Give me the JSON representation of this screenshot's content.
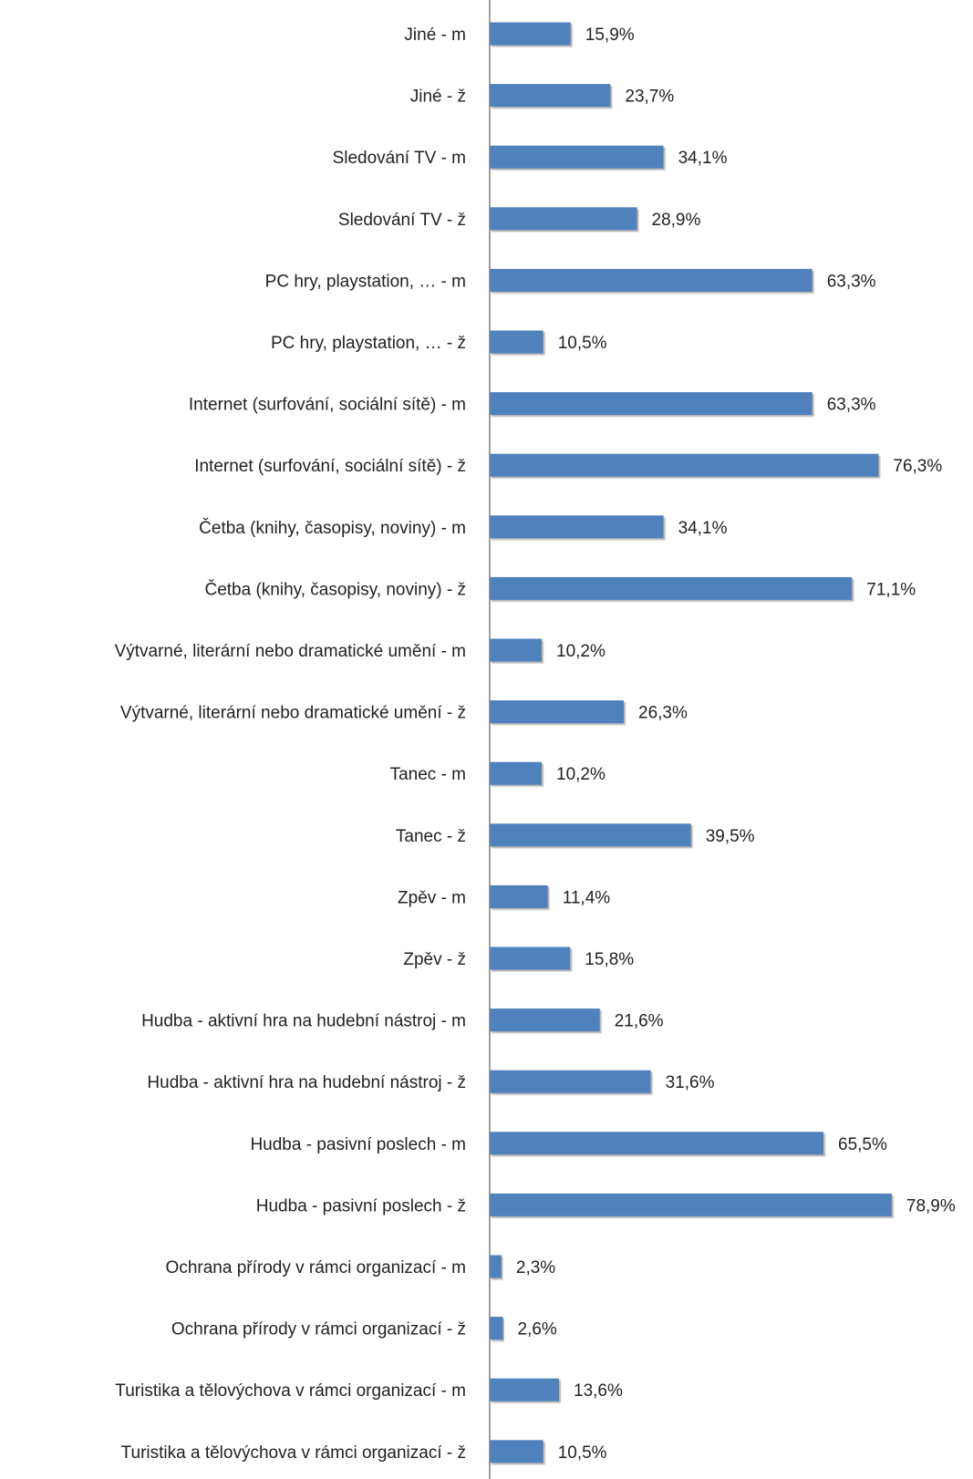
{
  "chart_data": {
    "type": "bar",
    "orientation": "horizontal",
    "title": "",
    "xlabel": "",
    "ylabel": "",
    "categories": [
      "Jiné - m",
      "Jiné - ž",
      "Sledování TV - m",
      "Sledování TV - ž",
      "PC hry, playstation, … - m",
      "PC hry, playstation, … - ž",
      "Internet (surfování, sociální sítě) - m",
      "Internet (surfování, sociální sítě) - ž",
      "Četba (knihy, časopisy, noviny) - m",
      "Četba (knihy, časopisy, noviny) - ž",
      "Výtvarné, literární nebo dramatické umění - m",
      "Výtvarné, literární nebo dramatické umění - ž",
      "Tanec - m",
      "Tanec - ž",
      "Zpěv - m",
      "Zpěv - ž",
      "Hudba - aktivní hra na hudební nástroj - m",
      "Hudba - aktivní hra na hudební nástroj - ž",
      "Hudba - pasivní poslech - m",
      "Hudba - pasivní poslech - ž",
      "Ochrana přírody v rámci organizací - m",
      "Ochrana přírody v rámci organizací - ž",
      "Turistika a tělovýchova v rámci organizací - m",
      "Turistika a tělovýchova v rámci organizací - ž"
    ],
    "values": [
      15.9,
      23.7,
      34.1,
      28.9,
      63.3,
      10.5,
      63.3,
      76.3,
      34.1,
      71.1,
      10.2,
      26.3,
      10.2,
      39.5,
      11.4,
      15.8,
      21.6,
      31.6,
      65.5,
      78.9,
      2.3,
      2.6,
      13.6,
      10.5
    ],
    "value_labels": [
      "15,9%",
      "23,7%",
      "34,1%",
      "28,9%",
      "63,3%",
      "10,5%",
      "63,3%",
      "76,3%",
      "34,1%",
      "71,1%",
      "10,2%",
      "26,3%",
      "10,2%",
      "39,5%",
      "11,4%",
      "15,8%",
      "21,6%",
      "31,6%",
      "65,5%",
      "78,9%",
      "2,3%",
      "2,6%",
      "13,6%",
      "10,5%"
    ],
    "xlim": [
      0,
      80
    ],
    "grid": false,
    "legend": "none",
    "bar_color": "#4f81bd",
    "axis_color": "#7f7f7f"
  }
}
